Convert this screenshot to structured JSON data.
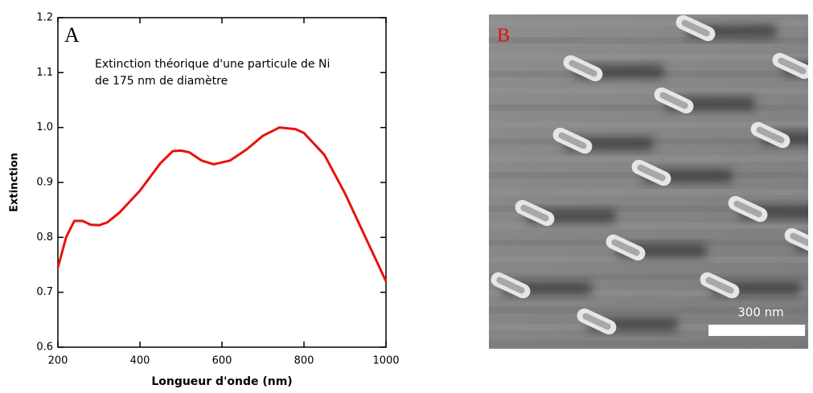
{
  "chart_data": {
    "type": "line",
    "panel_label": "A",
    "annotations": [
      "Extinction théorique d'une particule de Ni",
      "de 175 nm de diamètre"
    ],
    "x_label": "Longueur d'onde (nm)",
    "y_label": "Extinction",
    "x": [
      200,
      220,
      240,
      260,
      280,
      300,
      320,
      350,
      400,
      450,
      480,
      500,
      520,
      550,
      580,
      620,
      660,
      700,
      740,
      780,
      800,
      850,
      900,
      950,
      1000
    ],
    "series": [
      {
        "color": "#e8120c",
        "values": [
          0.745,
          0.8,
          0.83,
          0.83,
          0.823,
          0.822,
          0.827,
          0.845,
          0.885,
          0.935,
          0.957,
          0.958,
          0.955,
          0.94,
          0.933,
          0.94,
          0.96,
          0.985,
          1.0,
          0.997,
          0.99,
          0.95,
          0.88,
          0.8,
          0.72
        ]
      }
    ],
    "xlim": [
      200,
      1000
    ],
    "xticks": [
      200,
      400,
      600,
      800,
      1000
    ],
    "ylim": [
      0.6,
      1.2
    ],
    "yticks": [
      0.6,
      0.7,
      0.8,
      0.9,
      {
        "value": 1,
        "label": "1.0"
      },
      1.1,
      1.2
    ]
  },
  "image": {
    "label": "B",
    "scale_bar": "300 nm"
  }
}
